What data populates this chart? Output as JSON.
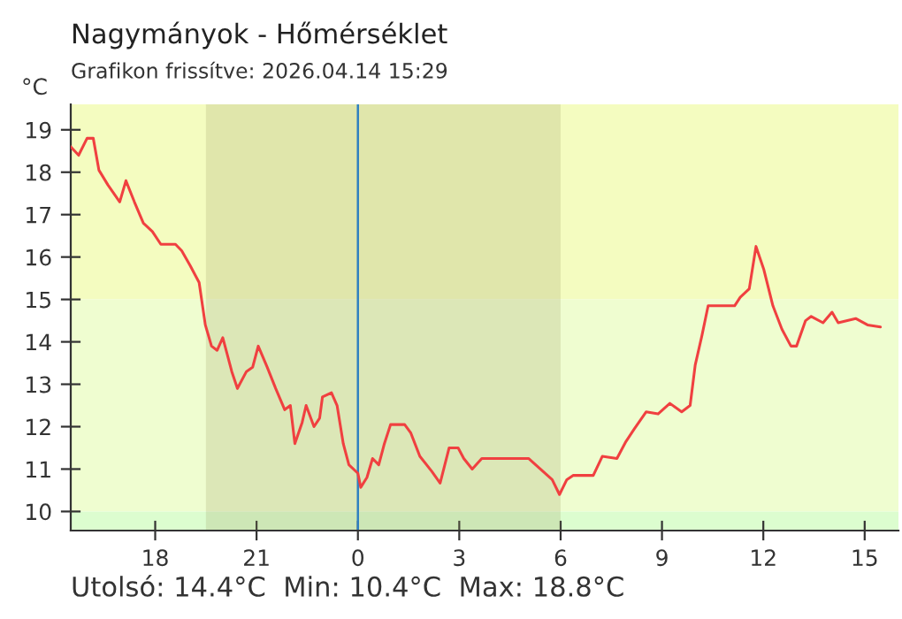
{
  "chart_data": {
    "type": "line",
    "title": "Nagymányok - Hőmérséklet",
    "subtitle": "Grafikon frissítve: 2026.04.14 15:29",
    "ylabel": "°C",
    "annotations": [
      "Utolsó: 14.4°C  Min: 10.4°C  Max: 18.8°C"
    ],
    "xlim": [
      "2026-04-13T15:30",
      "2026-04-14T16:00"
    ],
    "xticks": [
      {
        "value": "2026-04-13T18:00",
        "label": "18"
      },
      {
        "value": "2026-04-13T21:00",
        "label": "21"
      },
      {
        "value": "2026-04-14T00:00",
        "label": "0"
      },
      {
        "value": "2026-04-14T03:00",
        "label": "3"
      },
      {
        "value": "2026-04-14T06:00",
        "label": "6"
      },
      {
        "value": "2026-04-14T09:00",
        "label": "9"
      },
      {
        "value": "2026-04-14T12:00",
        "label": "12"
      },
      {
        "value": "2026-04-14T15:00",
        "label": "15"
      }
    ],
    "ylim": [
      9.55,
      19.6
    ],
    "yticks": [
      10,
      11,
      12,
      13,
      14,
      15,
      16,
      17,
      18,
      19
    ],
    "grid": false,
    "legend": false,
    "marker": "none",
    "line_style": "solid",
    "bands": [
      {
        "axis": "y",
        "from": 15,
        "to": 19.6,
        "color": "#f4fcc0"
      },
      {
        "axis": "y",
        "from": 10,
        "to": 15,
        "color": "#effdd0"
      },
      {
        "axis": "y",
        "from": 9.55,
        "to": 10,
        "color": "#dcfdcf"
      },
      {
        "axis": "x",
        "from": "2026-04-13T19:30",
        "to": "2026-04-14T06:00",
        "color": "#9a9a60"
      }
    ],
    "ref_lines": [
      {
        "axis": "x",
        "value": "2026-04-14T00:00",
        "color": "#3080c0"
      }
    ],
    "series": [
      {
        "color": "#f04040",
        "x": [
          "2026-04-13T15:30",
          "2026-04-13T15:44",
          "2026-04-13T15:59",
          "2026-04-13T16:10",
          "2026-04-13T16:20",
          "2026-04-13T16:36",
          "2026-04-13T16:57",
          "2026-04-13T17:08",
          "2026-04-13T17:23",
          "2026-04-13T17:39",
          "2026-04-13T17:55",
          "2026-04-13T18:10",
          "2026-04-13T18:36",
          "2026-04-13T18:47",
          "2026-04-13T19:02",
          "2026-04-13T19:18",
          "2026-04-13T19:29",
          "2026-04-13T19:40",
          "2026-04-13T19:50",
          "2026-04-13T20:00",
          "2026-04-13T20:16",
          "2026-04-13T20:26",
          "2026-04-13T20:42",
          "2026-04-13T20:53",
          "2026-04-13T21:03",
          "2026-04-13T21:19",
          "2026-04-13T21:34",
          "2026-04-13T21:50",
          "2026-04-13T22:00",
          "2026-04-13T22:08",
          "2026-04-13T22:21",
          "2026-04-13T22:28",
          "2026-04-13T22:42",
          "2026-04-13T22:52",
          "2026-04-13T22:57",
          "2026-04-13T23:13",
          "2026-04-13T23:23",
          "2026-04-13T23:34",
          "2026-04-13T23:44",
          "2026-04-14T00:00",
          "2026-04-14T00:05",
          "2026-04-14T00:16",
          "2026-04-14T00:26",
          "2026-04-14T00:37",
          "2026-04-14T00:47",
          "2026-04-14T00:58",
          "2026-04-14T01:23",
          "2026-04-14T01:34",
          "2026-04-14T01:50",
          "2026-04-14T02:11",
          "2026-04-14T02:26",
          "2026-04-14T02:42",
          "2026-04-14T02:58",
          "2026-04-14T03:08",
          "2026-04-14T03:23",
          "2026-04-14T03:40",
          "2026-04-14T04:05",
          "2026-04-14T04:21",
          "2026-04-14T05:03",
          "2026-04-14T05:24",
          "2026-04-14T05:45",
          "2026-04-14T05:58",
          "2026-04-14T06:11",
          "2026-04-14T06:22",
          "2026-04-14T06:58",
          "2026-04-14T07:14",
          "2026-04-14T07:40",
          "2026-04-14T07:56",
          "2026-04-14T08:11",
          "2026-04-14T08:32",
          "2026-04-14T08:53",
          "2026-04-14T09:14",
          "2026-04-14T09:35",
          "2026-04-14T09:50",
          "2026-04-14T09:59",
          "2026-04-14T10:11",
          "2026-04-14T10:22",
          "2026-04-14T11:09",
          "2026-04-14T11:19",
          "2026-04-14T11:35",
          "2026-04-14T11:47",
          "2026-04-14T12:01",
          "2026-04-14T12:17",
          "2026-04-14T12:33",
          "2026-04-14T12:49",
          "2026-04-14T12:59",
          "2026-04-14T13:15",
          "2026-04-14T13:25",
          "2026-04-14T13:46",
          "2026-04-14T14:02",
          "2026-04-14T14:13",
          "2026-04-14T14:44",
          "2026-04-14T15:05",
          "2026-04-14T15:28"
        ],
        "values": [
          18.6,
          18.4,
          18.8,
          18.8,
          18.05,
          17.7,
          17.3,
          17.8,
          17.3,
          16.8,
          16.6,
          16.3,
          16.3,
          16.15,
          15.8,
          15.4,
          14.4,
          13.9,
          13.8,
          14.1,
          13.3,
          12.9,
          13.3,
          13.4,
          13.9,
          13.4,
          12.9,
          12.4,
          12.5,
          11.6,
          12.1,
          12.5,
          12.0,
          12.2,
          12.7,
          12.8,
          12.5,
          11.6,
          11.1,
          10.9,
          10.57,
          10.8,
          11.25,
          11.1,
          11.6,
          12.05,
          12.05,
          11.85,
          11.3,
          10.95,
          10.67,
          11.5,
          11.5,
          11.25,
          11.0,
          11.25,
          11.25,
          11.25,
          11.25,
          11.0,
          10.75,
          10.4,
          10.75,
          10.85,
          10.85,
          11.3,
          11.25,
          11.65,
          11.95,
          12.35,
          12.3,
          12.55,
          12.35,
          12.5,
          13.45,
          14.15,
          14.85,
          14.85,
          15.05,
          15.25,
          16.25,
          15.7,
          14.85,
          14.3,
          13.9,
          13.9,
          14.5,
          14.6,
          14.45,
          14.7,
          14.45,
          14.55,
          14.4,
          14.35
        ]
      }
    ]
  }
}
